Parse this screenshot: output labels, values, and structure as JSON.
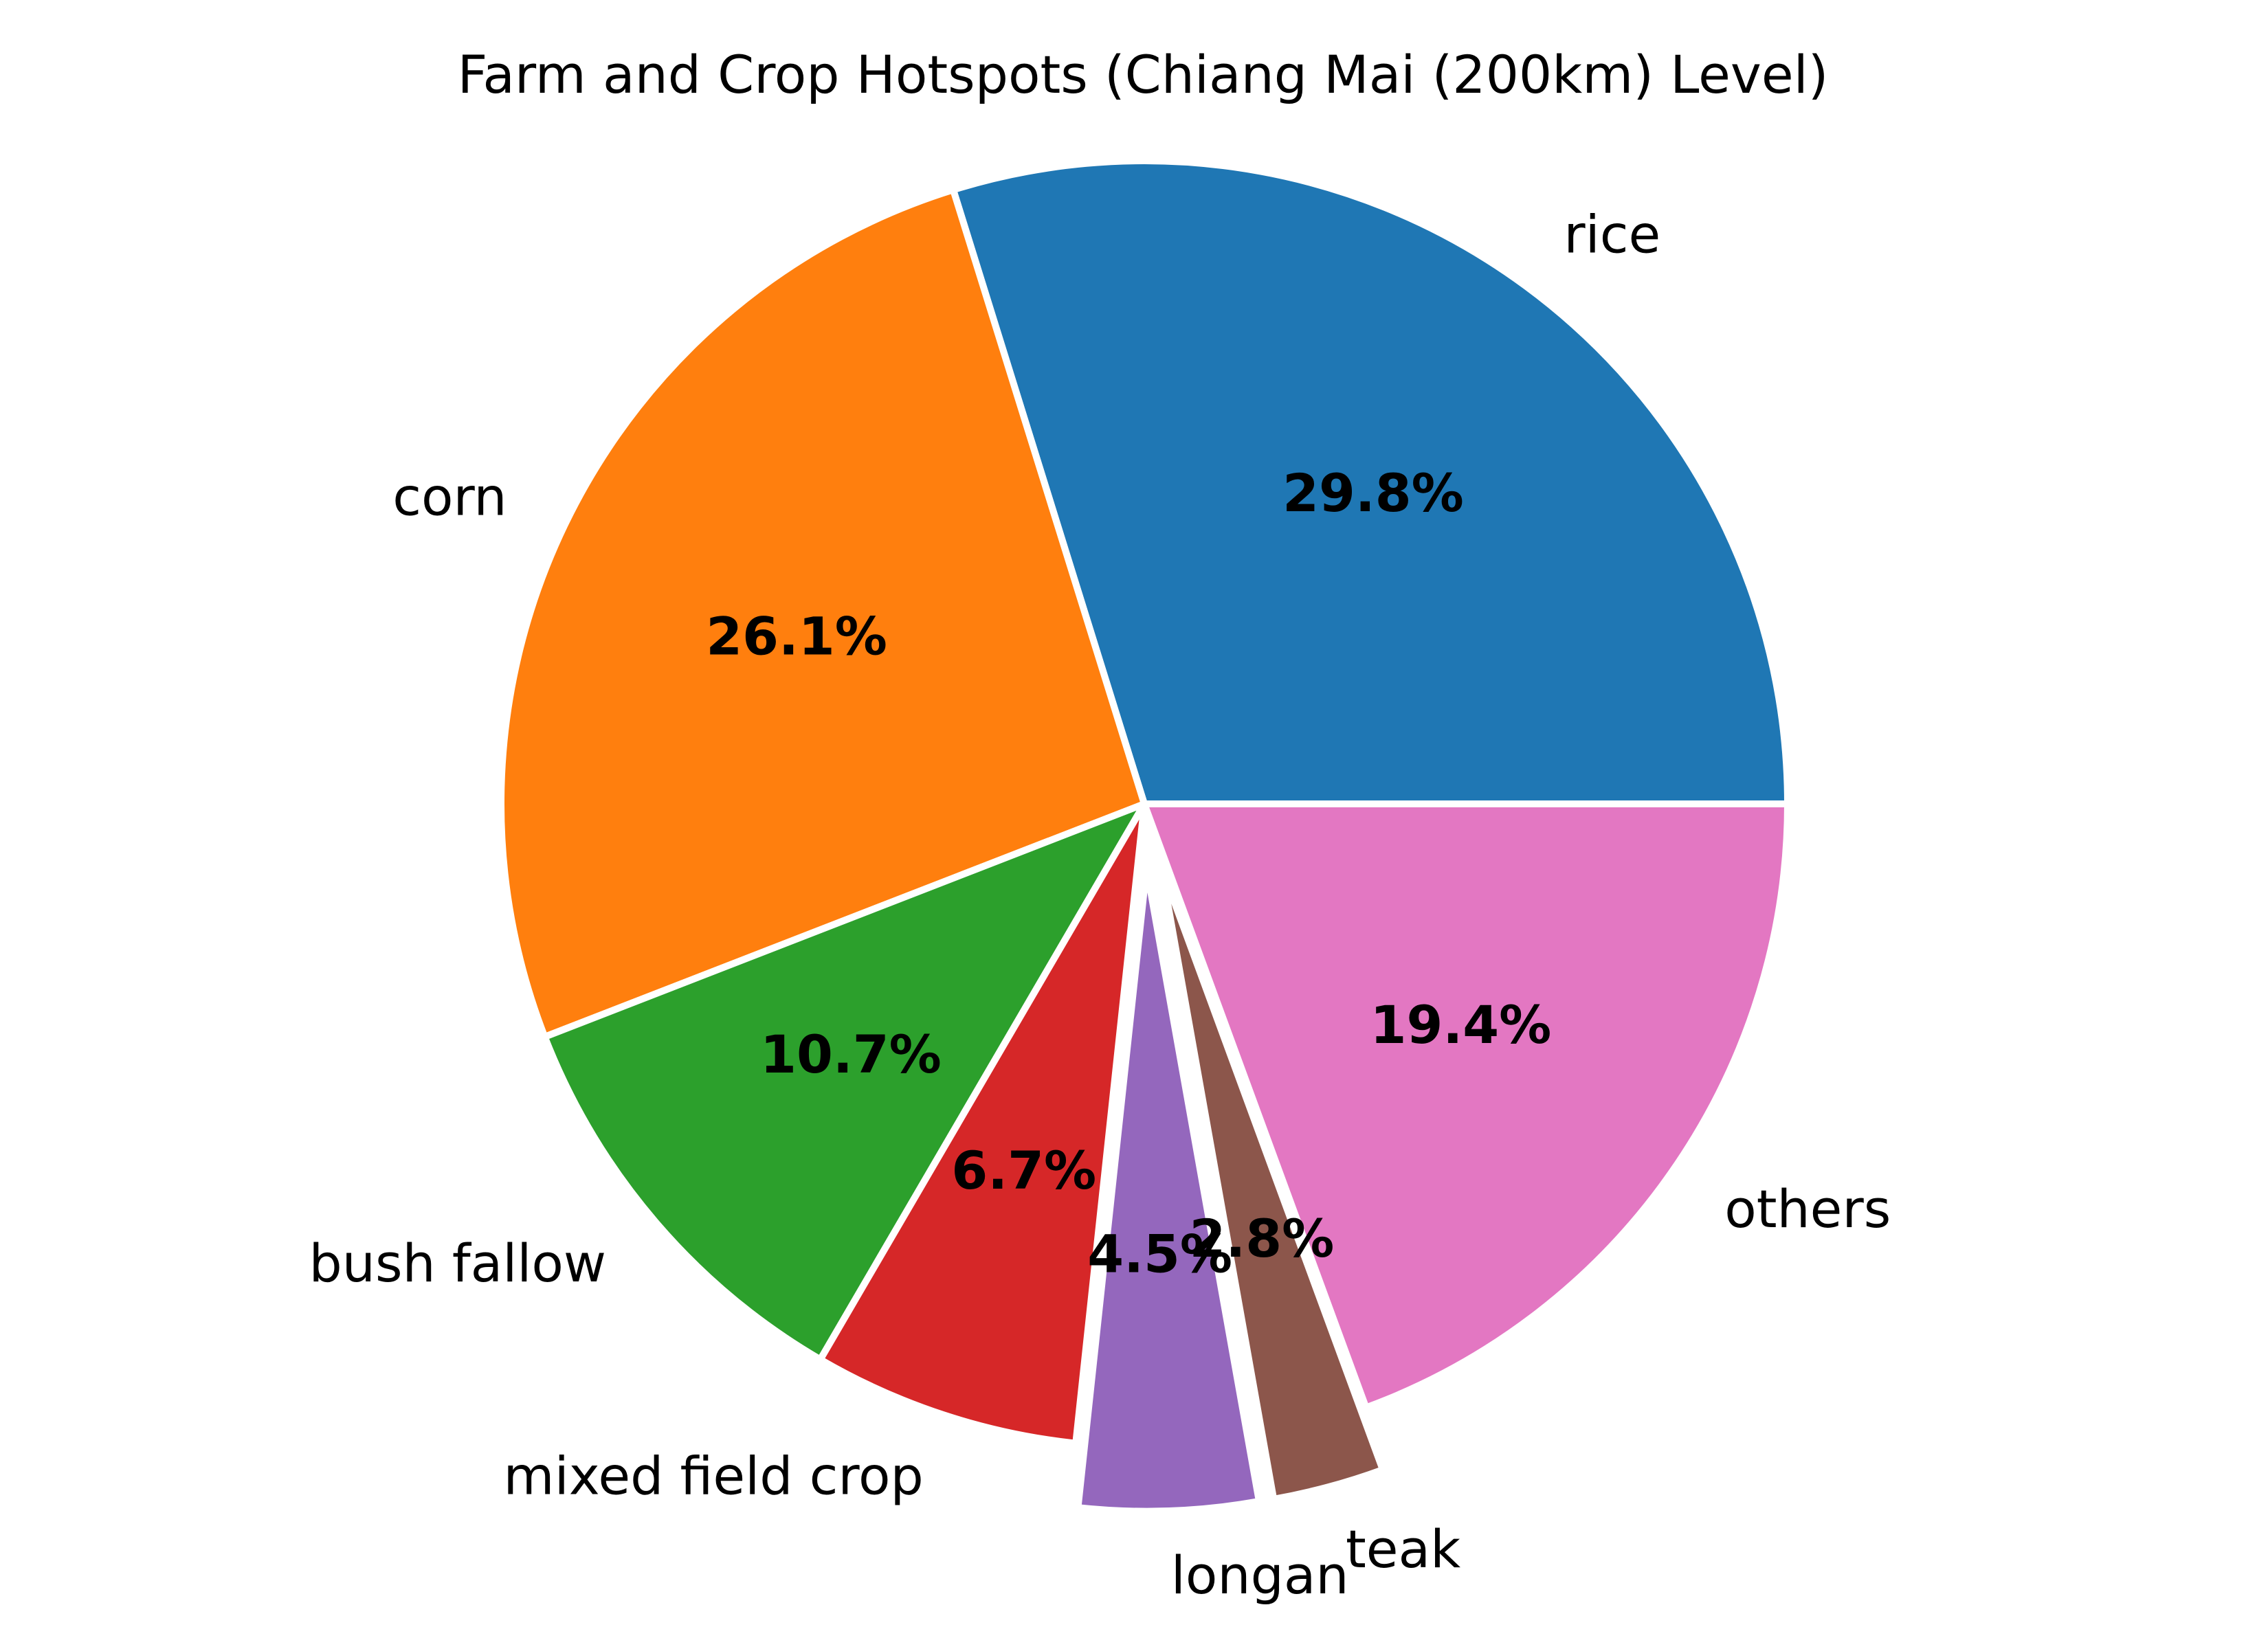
{
  "chart_data": {
    "type": "pie",
    "title": "Farm and Crop Hotspots (Chiang Mai (200km) Level)",
    "slices": [
      {
        "label": "rice",
        "value": 29.8,
        "pct_label": "29.8%",
        "color": "#1f77b4",
        "exploded": false
      },
      {
        "label": "corn",
        "value": 26.1,
        "pct_label": "26.1%",
        "color": "#ff7f0e",
        "exploded": false
      },
      {
        "label": "bush fallow",
        "value": 10.7,
        "pct_label": "10.7%",
        "color": "#2ca02c",
        "exploded": false
      },
      {
        "label": "mixed field crop",
        "value": 6.7,
        "pct_label": "6.7%",
        "color": "#d62728",
        "exploded": false
      },
      {
        "label": "longan",
        "value": 4.5,
        "pct_label": "4.5%",
        "color": "#9467bd",
        "exploded": true
      },
      {
        "label": "teak",
        "value": 2.8,
        "pct_label": "2.8%",
        "color": "#8c564b",
        "exploded": true
      },
      {
        "label": "others",
        "value": 19.4,
        "pct_label": "19.4%",
        "color": "#e377c2",
        "exploded": false
      }
    ],
    "start_angle": "0 degrees (east), counter-clockwise",
    "wedge_edge_color": "#ffffff"
  }
}
